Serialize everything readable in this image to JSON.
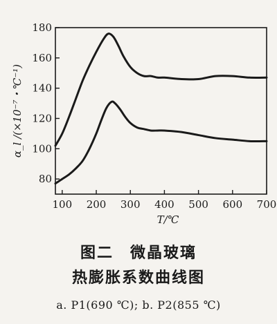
{
  "chart_data": {
    "type": "line",
    "xlabel": "T/℃",
    "ylabel": "α_l /(×10⁻⁷・℃⁻¹)",
    "xlim": [
      80,
      700
    ],
    "ylim": [
      70,
      180
    ],
    "x_ticks": [
      100,
      200,
      300,
      400,
      500,
      600,
      700
    ],
    "y_ticks": [
      80,
      100,
      120,
      140,
      160,
      180
    ],
    "grid": false,
    "series": [
      {
        "name": "a",
        "x": [
          80,
          100,
          120,
          140,
          160,
          180,
          200,
          220,
          235,
          250,
          265,
          280,
          300,
          320,
          340,
          360,
          380,
          400,
          450,
          500,
          550,
          600,
          650,
          700
        ],
        "values": [
          102,
          110,
          121,
          133,
          145,
          155,
          164,
          172,
          176,
          174,
          168,
          161,
          154,
          150,
          148,
          148,
          147,
          147,
          146,
          146,
          148,
          148,
          147,
          147
        ]
      },
      {
        "name": "b",
        "x": [
          80,
          100,
          120,
          140,
          160,
          180,
          200,
          215,
          230,
          245,
          255,
          270,
          285,
          300,
          320,
          340,
          360,
          380,
          400,
          450,
          500,
          550,
          600,
          650,
          700
        ],
        "values": [
          77,
          80,
          83,
          87,
          92,
          100,
          110,
          119,
          127,
          131,
          130,
          126,
          121,
          117,
          114,
          113,
          112,
          112,
          112,
          111,
          109,
          107,
          106,
          105,
          105
        ]
      }
    ]
  },
  "caption": {
    "line1": "图二　微晶玻璃",
    "line2": "热膨胀系数曲线图",
    "note": "a. P1(690 ℃); b. P2(855 ℃)"
  }
}
